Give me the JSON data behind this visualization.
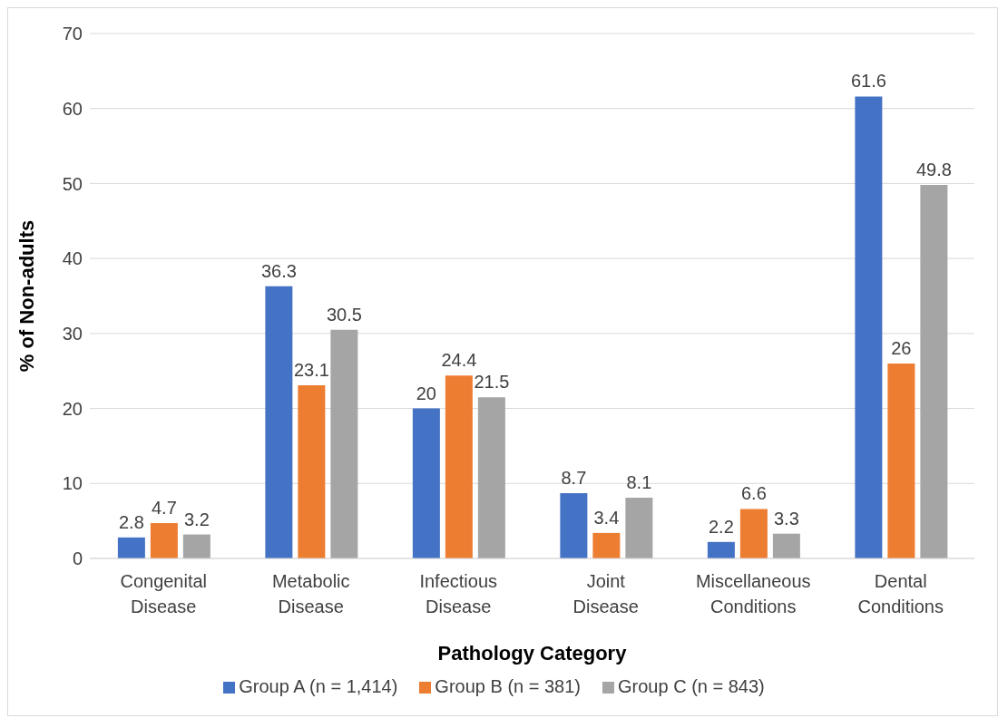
{
  "chart_data": {
    "type": "bar",
    "xlabel": "Pathology Category",
    "ylabel": "% of Non-adults",
    "categories": [
      "Congenital Disease",
      "Metabolic Disease",
      "Infectious Disease",
      "Joint Disease",
      "Miscellaneous Conditions",
      "Dental Conditions"
    ],
    "series": [
      {
        "name": "Group A (n = 1,414)",
        "color": "#4472c4",
        "values": [
          2.8,
          36.3,
          20,
          8.7,
          2.2,
          61.6
        ]
      },
      {
        "name": "Group B (n = 381)",
        "color": "#ed7d31",
        "values": [
          4.7,
          23.1,
          24.4,
          3.4,
          6.6,
          26
        ]
      },
      {
        "name": "Group C (n = 843)",
        "color": "#a5a5a5",
        "values": [
          3.2,
          30.5,
          21.5,
          8.1,
          3.3,
          49.8
        ]
      }
    ],
    "ylim": [
      0,
      70
    ],
    "yticks": [
      0,
      10,
      20,
      30,
      40,
      50,
      60,
      70
    ],
    "grid": "y",
    "data_labels": true,
    "legend": "bottom"
  }
}
